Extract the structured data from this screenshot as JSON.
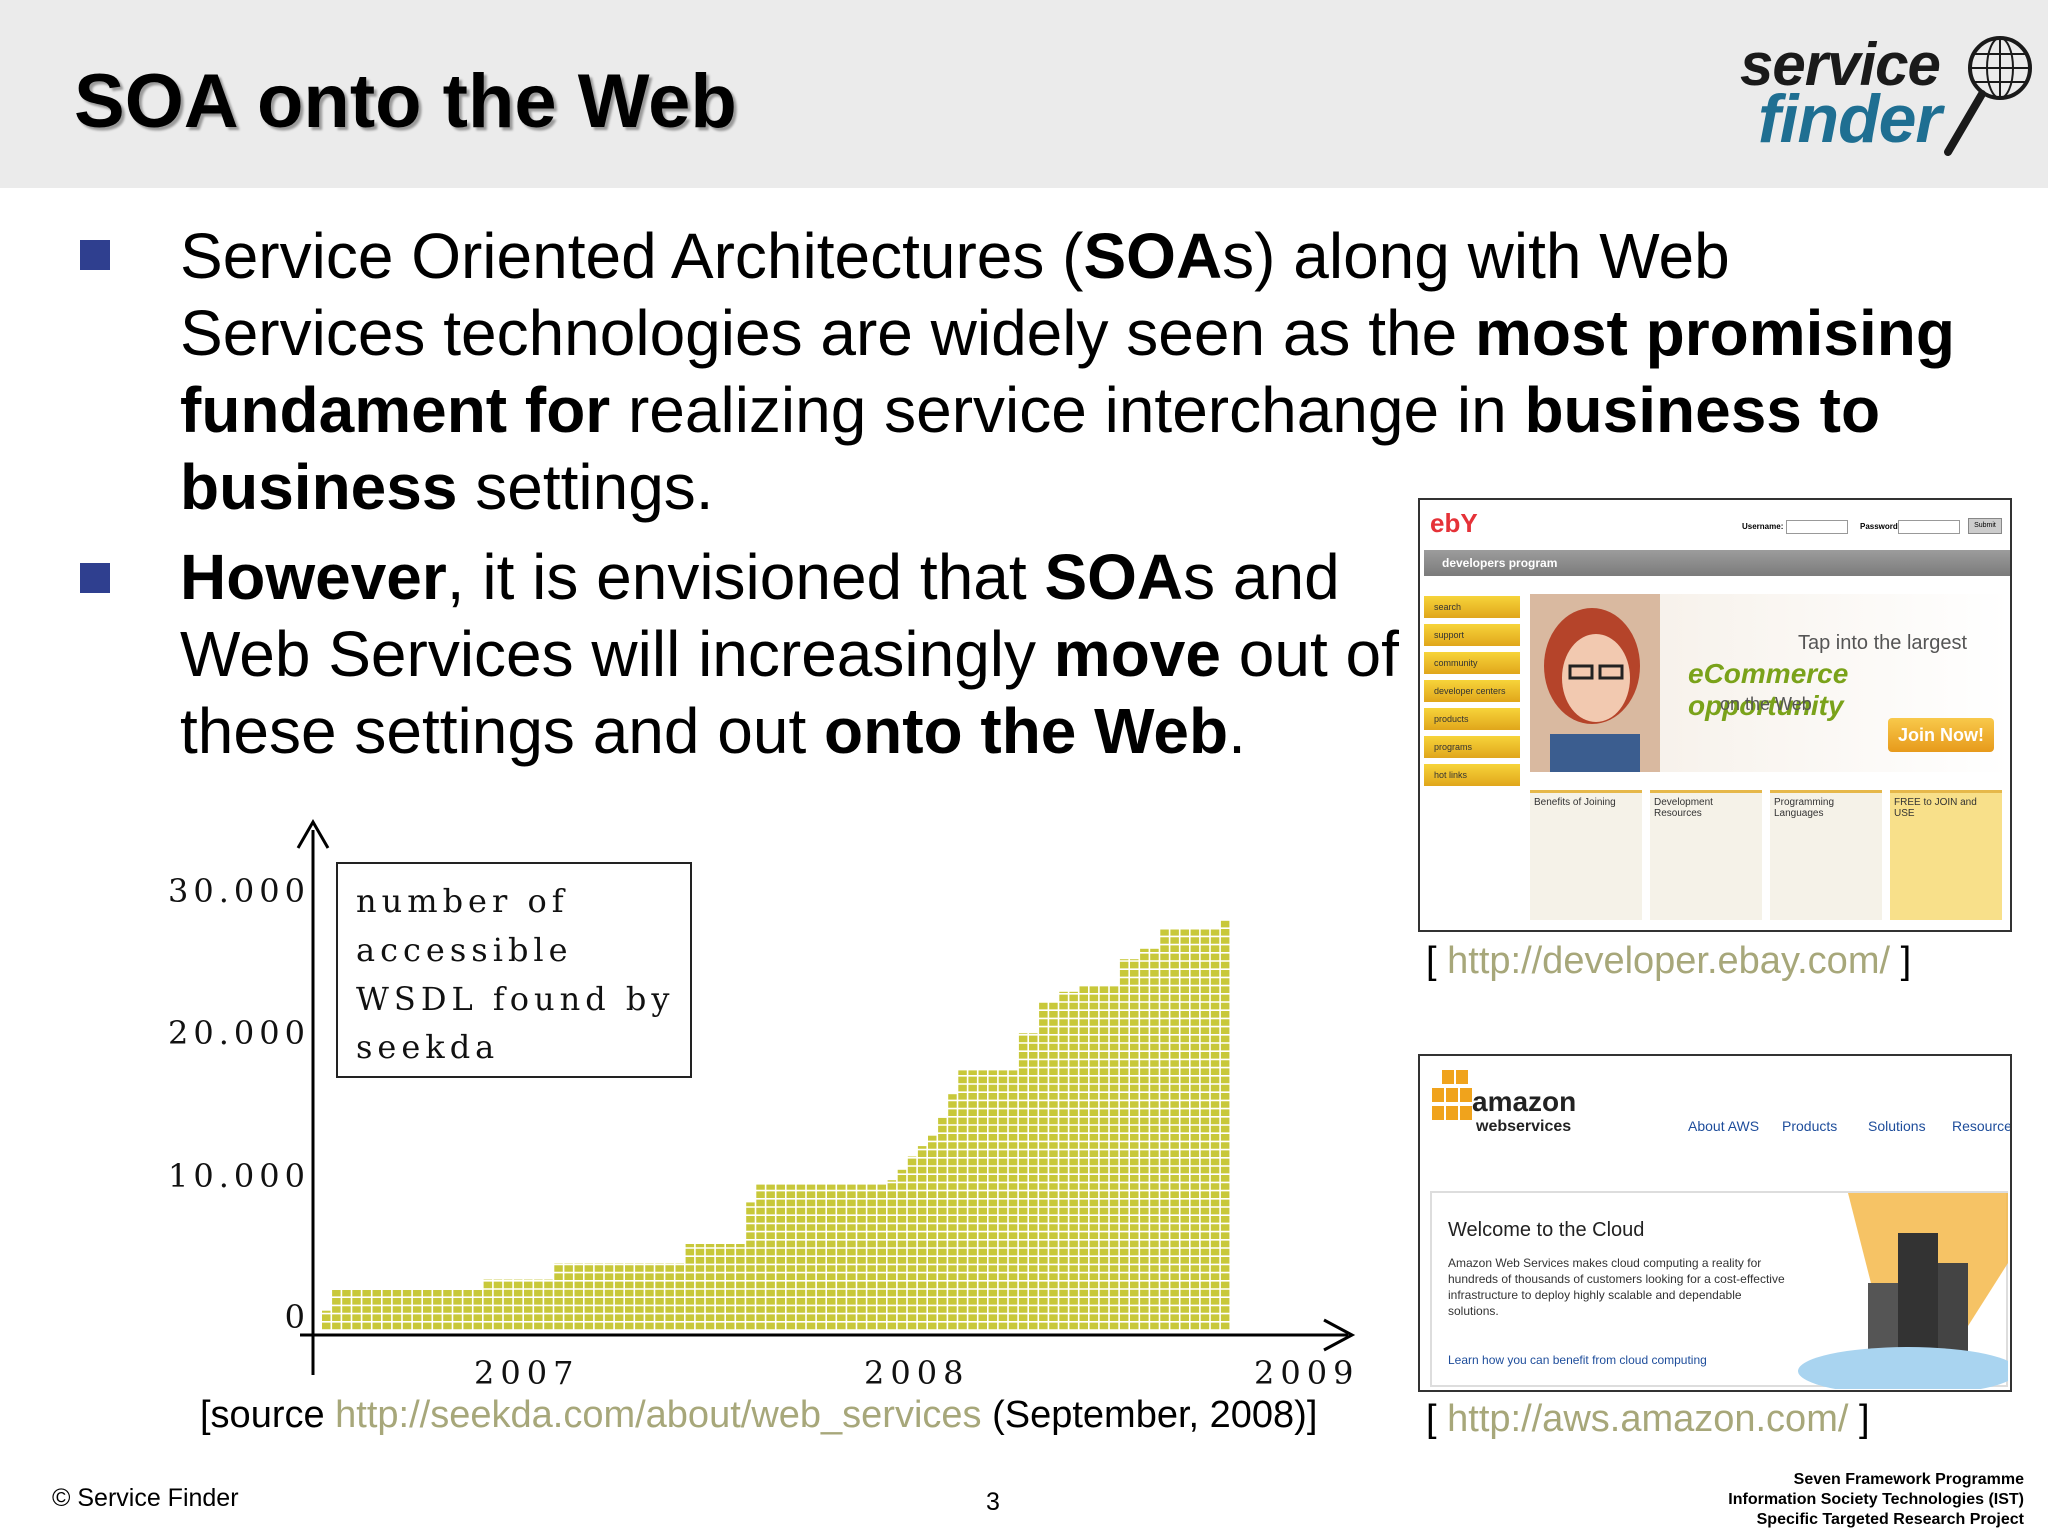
{
  "slide": {
    "title": "SOA onto the Web",
    "logo": {
      "word1": "service",
      "word2": "finder",
      "icon": "globe-magnifier-icon"
    }
  },
  "bullets": {
    "b1": {
      "t1": "Service Oriented Architectures (",
      "t2": "SOA",
      "t3": "s) along with Web Services technologies are widely seen as the ",
      "t4": "most promising fundament for",
      "t5": " realizing service interchange in ",
      "t6": "business to business",
      "t7": " settings."
    },
    "b2": {
      "t1": "However",
      "t2": ", it is envisioned that ",
      "t3": "SOA",
      "t4": "s and Web Services will increasingly ",
      "t5": "move",
      "t6": " out of these settings and out ",
      "t7": "onto the Web",
      "t8": "."
    }
  },
  "chart_data": {
    "type": "bar",
    "legend": [
      "number of",
      "accessible",
      "WSDL found by",
      "seekda"
    ],
    "yticks": [
      "30.000",
      "20.000",
      "10.000",
      "0"
    ],
    "xticks": [
      "2007",
      "2008",
      "2009"
    ],
    "ylim": [
      0,
      32000
    ],
    "color": "#c8c83a",
    "x": [
      0,
      1,
      2,
      3,
      4,
      5,
      6,
      7,
      8,
      9,
      10,
      11,
      12,
      13,
      14,
      15,
      16,
      17,
      18,
      19,
      20,
      21,
      22,
      23,
      24,
      25,
      26,
      27,
      28,
      29,
      30,
      31,
      32,
      33,
      34,
      35,
      36,
      37,
      38,
      39,
      40,
      41,
      42,
      43,
      44,
      45,
      46,
      47,
      48,
      49,
      50,
      51,
      52,
      53,
      54,
      55,
      56,
      57,
      58,
      59,
      60,
      61,
      62,
      63,
      64,
      65,
      66,
      67,
      68,
      69,
      70,
      71,
      72,
      73,
      74,
      75,
      76,
      77,
      78,
      79,
      80,
      81,
      82,
      83,
      84,
      85,
      86,
      87,
      88,
      89
    ],
    "values": [
      1300,
      2700,
      2700,
      2700,
      2700,
      2700,
      2700,
      2700,
      2700,
      2700,
      2700,
      2700,
      2700,
      2700,
      2700,
      2700,
      3400,
      3400,
      3400,
      3400,
      3400,
      3400,
      3400,
      4500,
      4500,
      4500,
      4500,
      4500,
      4500,
      4500,
      4500,
      4500,
      4500,
      4500,
      4500,
      4500,
      5800,
      5800,
      5800,
      5800,
      5800,
      5800,
      8600,
      9800,
      9800,
      9800,
      9800,
      9800,
      9800,
      9800,
      9800,
      9800,
      9800,
      9800,
      9800,
      9800,
      10100,
      10800,
      11700,
      12400,
      13100,
      14300,
      15900,
      17500,
      17500,
      17500,
      17500,
      17500,
      17500,
      20000,
      20000,
      22100,
      22100,
      22800,
      22800,
      23200,
      23200,
      23200,
      23200,
      25000,
      25000,
      25700,
      25700,
      27000,
      27000,
      27000,
      27000,
      27000,
      27000,
      27600
    ]
  },
  "source": {
    "prefix": "[source ",
    "link": "http://seekda.com/about/web_services",
    "suffix": " (September, 2008)]"
  },
  "ebay": {
    "brand": "ebY",
    "username_label": "Username:",
    "password_label": "Password:",
    "submit": "Submit",
    "bar": "developers program",
    "side": [
      "search",
      "support",
      "community",
      "developer centers",
      "products",
      "programs",
      "hot links"
    ],
    "hero_1": "Tap into the largest",
    "hero_2": "eCommerce opportunity",
    "hero_3": "on the Web",
    "join": "Join Now!",
    "cols": [
      "Benefits of Joining",
      "Development Resources",
      "Programming Languages",
      "FREE to JOIN and USE"
    ],
    "caption_open": "[ ",
    "caption_link": "http://developer.ebay.com/",
    "caption_close": " ]"
  },
  "aws": {
    "brand": "amazon",
    "brand_sub": "webservices",
    "nav": [
      "About AWS",
      "Products",
      "Solutions",
      "Resource"
    ],
    "welcome": "Welcome to the Cloud",
    "body": "Amazon Web Services makes cloud computing a reality for hundreds of thousands of customers looking for a cost-effective infrastructure to deploy highly scalable and dependable solutions.",
    "learn": "Learn how you can benefit from cloud computing",
    "caption_open": "[ ",
    "caption_link": "http://aws.amazon.com/",
    "caption_close": " ]"
  },
  "footer": {
    "copyright": "© Service Finder",
    "page": "3",
    "r1": "Seven Framework Programme",
    "r2": "Information Society Technologies (IST)",
    "r3": "Specific Targeted Research Project"
  }
}
